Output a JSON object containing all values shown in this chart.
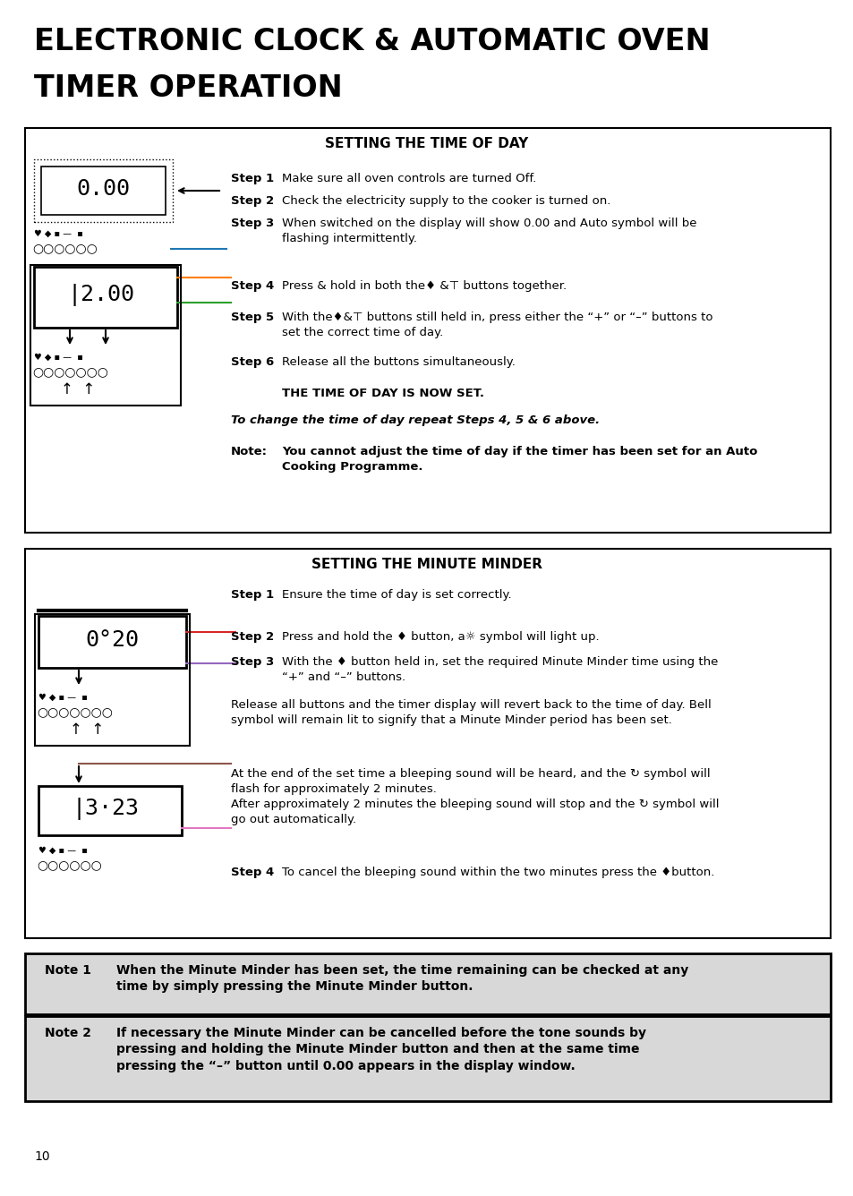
{
  "title_line1": "ELECTRONIC CLOCK & AUTOMATIC OVEN",
  "title_line2": "TIMER OPERATION",
  "section1_title": "SETTING THE TIME OF DAY",
  "section2_title": "SETTING THE MINUTE MINDER",
  "bg_color": "#ffffff",
  "note_bg": "#d8d8d8",
  "s1_step1": "Make sure all oven controls are turned Off.",
  "s1_step2": "Check the electricity supply to the cooker is turned on.",
  "s1_step3": "When switched on the display will show 0.00 and Auto symbol will be\nflashing intermittently.",
  "s1_step4": "Press & hold in both the♦ &⊤ buttons together.",
  "s1_step5": "With the♦&⊤ buttons still held in, press either the “+” or “–” buttons to\nset the correct time of day.",
  "s1_step6": "Release all the buttons simultaneously.",
  "s1_set": "THE TIME OF DAY IS NOW SET.",
  "s1_change": "To change the time of day repeat Steps 4, 5 & 6 above.",
  "s1_note_label": "Note:",
  "s1_note_text": "You cannot adjust the time of day if the timer has been set for an Auto\nCooking Programme.",
  "s2_step1": "Ensure the time of day is set correctly.",
  "s2_step2": "Press and hold the ♦ button, a☼ symbol will light up.",
  "s2_step3": "With the ♦ button held in, set the required Minute Minder time using the\n“+” and “–” buttons.",
  "s2_release": "Release all buttons and the timer display will revert back to the time of day. Bell\nsymbol will remain lit to signify that a Minute Minder period has been set.",
  "s2_bleep": "At the end of the set time a bleeping sound will be heard, and the ↻ symbol will\nflash for approximately 2 minutes.\nAfter approximately 2 minutes the bleeping sound will stop and the ↻ symbol will\ngo out automatically.",
  "s2_step4": "To cancel the bleeping sound within the two minutes press the ♦button.",
  "note1_label": "Note 1",
  "note1_text": "When the Minute Minder has been set, the time remaining can be checked at any\ntime by simply pressing the Minute Minder button.",
  "note2_label": "Note 2",
  "note2_text": "If necessary the Minute Minder can be cancelled before the tone sounds by\npressing and holding the Minute Minder button and then at the same time\npressing the “–” button until 0.00 appears in the display window.",
  "page_number": "10"
}
